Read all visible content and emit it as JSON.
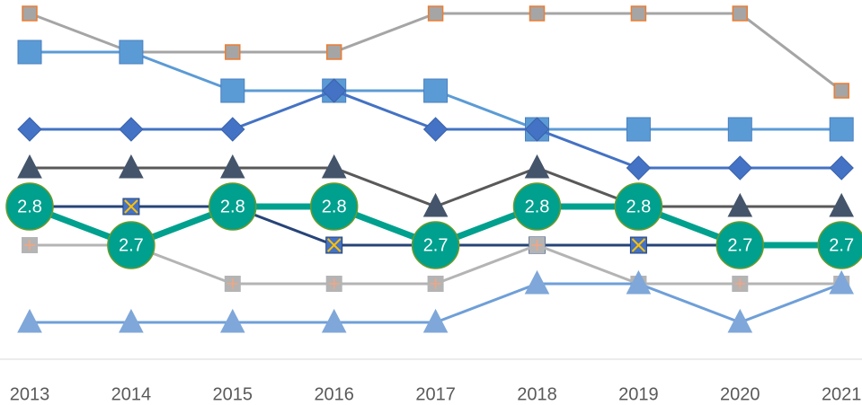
{
  "chart_data": {
    "type": "line",
    "categories": [
      "2013",
      "2014",
      "2015",
      "2016",
      "2017",
      "2018",
      "2019",
      "2020",
      "2021"
    ],
    "ylim": [
      2.4,
      3.35
    ],
    "series": [
      {
        "color": "#a5a5a5",
        "marker": "square-small",
        "marker_fill": "#a5a5a5",
        "marker_stroke": "#ed7d31",
        "values": [
          3.3,
          3.2,
          3.2,
          3.2,
          3.3,
          3.3,
          3.3,
          3.3,
          3.1
        ]
      },
      {
        "color": "#5b9bd5",
        "marker": "square-large",
        "marker_fill": "#5b9bd5",
        "marker_stroke": "#4a7fc0",
        "values": [
          3.2,
          3.2,
          3.1,
          3.1,
          3.1,
          3.0,
          3.0,
          3.0,
          3.0
        ]
      },
      {
        "color": "#4472c4",
        "marker": "diamond",
        "marker_fill": "#4472c4",
        "marker_stroke": "#3a62aa",
        "values": [
          3.0,
          3.0,
          3.0,
          3.1,
          3.0,
          3.0,
          2.9,
          2.9,
          2.9
        ]
      },
      {
        "color": "#595959",
        "marker": "triangle",
        "marker_fill": "#44546a",
        "marker_stroke": "#44546a",
        "values": [
          2.9,
          2.9,
          2.9,
          2.9,
          2.8,
          2.9,
          2.8,
          2.8,
          2.8
        ]
      },
      {
        "color": "#264478",
        "marker": "x-square",
        "marker_fill": "#4472c4",
        "marker_stroke": "#ffc000",
        "values": [
          2.8,
          2.8,
          2.8,
          2.7,
          2.7,
          2.7,
          2.7,
          2.7,
          2.7
        ]
      },
      {
        "color": "#b4b4b4",
        "marker": "plus-square",
        "marker_fill": "#b4b4b4",
        "marker_stroke": "#f4a582",
        "values": [
          2.7,
          2.7,
          2.6,
          2.6,
          2.6,
          2.7,
          2.6,
          2.6,
          2.6
        ]
      },
      {
        "color": "#6f9fd8",
        "marker": "triangle",
        "marker_fill": "#7fa7d9",
        "marker_stroke": "#7fa7d9",
        "values": [
          2.5,
          2.5,
          2.5,
          2.5,
          2.5,
          2.6,
          2.6,
          2.5,
          2.6
        ]
      },
      {
        "color": "#00a08e",
        "marker": "label-circle",
        "marker_fill": "#00a08e",
        "marker_stroke": "#6b9a2a",
        "data_labels": true,
        "values": [
          2.8,
          2.7,
          2.8,
          2.8,
          2.7,
          2.8,
          2.8,
          2.7,
          2.7
        ]
      }
    ]
  }
}
